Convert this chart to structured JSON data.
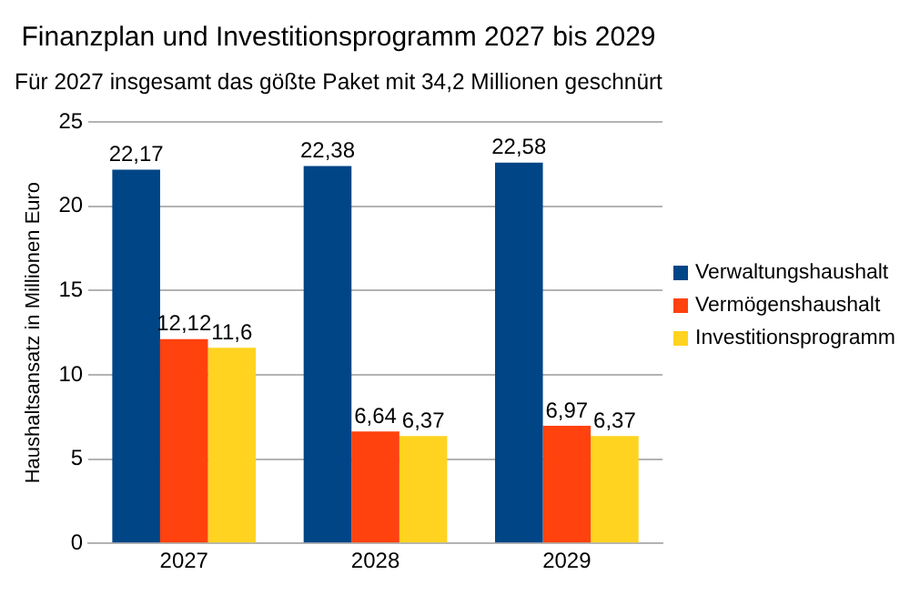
{
  "chart_data": {
    "type": "bar",
    "title": "Finanzplan und Investitionsprogramm 2027 bis 2029",
    "subtitle": "Für 2027 insgesamt das gößte Paket mit 34,2 Millionen geschnürt",
    "ylabel": "Haushaltsansatz in Millionen Euro",
    "categories": [
      "2027",
      "2028",
      "2029"
    ],
    "series": [
      {
        "name": "Verwaltungshaushalt",
        "color": "#004586",
        "values": [
          22.17,
          22.38,
          22.58
        ],
        "value_labels": [
          "22,17",
          "22,38",
          "22,58"
        ]
      },
      {
        "name": "Vermögenshaushalt",
        "color": "#ff420e",
        "values": [
          12.12,
          6.64,
          6.97
        ],
        "value_labels": [
          "12,12",
          "6,64",
          "6,97"
        ]
      },
      {
        "name": "Investitionsprogramm",
        "color": "#ffd320",
        "values": [
          11.6,
          6.37,
          6.37
        ],
        "value_labels": [
          "11,6",
          "6,37",
          "6,37"
        ]
      }
    ],
    "ylim": [
      0,
      25
    ],
    "yticks": [
      0,
      5,
      10,
      15,
      20,
      25
    ],
    "grid": "y",
    "legend": "right"
  }
}
